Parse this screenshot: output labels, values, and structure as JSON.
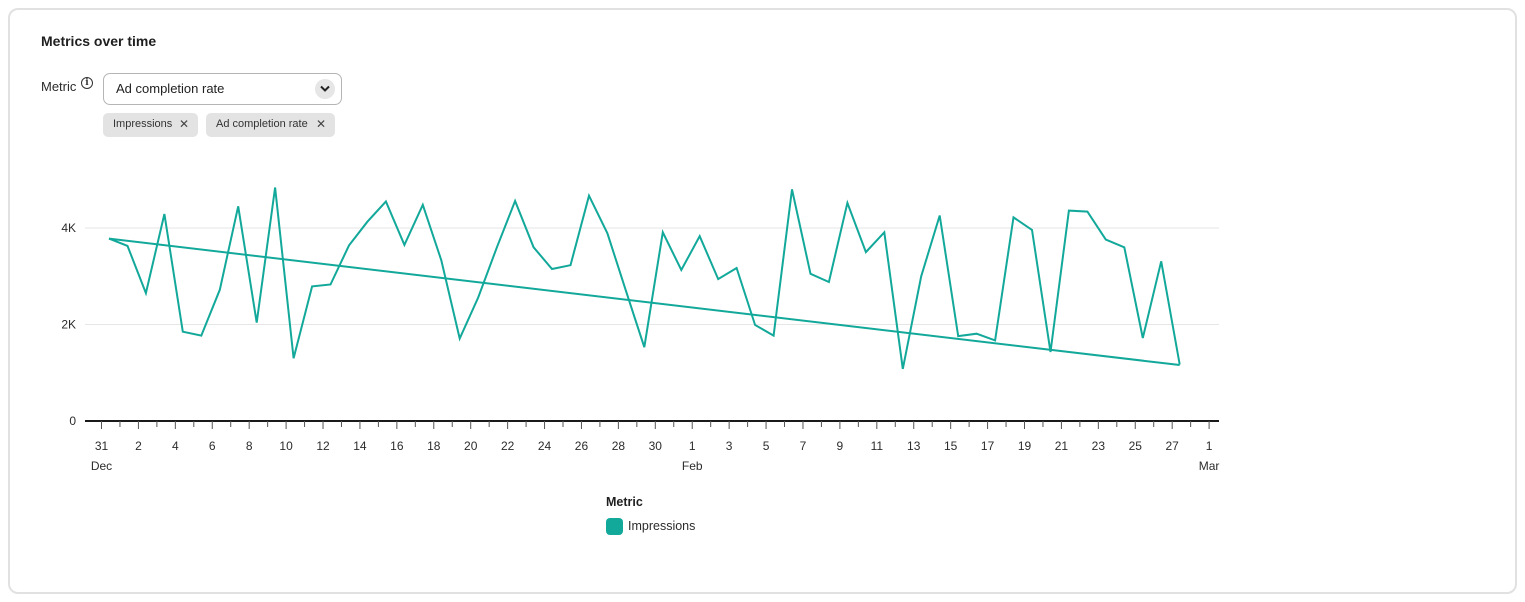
{
  "card": {
    "title": "Metrics over time"
  },
  "metric_picker": {
    "label": "Metric",
    "info_icon": "info-icon",
    "selected": "Ad completion rate",
    "chevron_icon": "chevron-down-icon"
  },
  "tags": [
    {
      "label": "Impressions",
      "remove": "✕"
    },
    {
      "label": "Ad completion rate",
      "remove": "✕"
    }
  ],
  "colors": {
    "series": "#12a89a",
    "grid": "#e6e6e6",
    "axis": "#1a1a1a"
  },
  "chart_data": {
    "type": "line",
    "y_ticks": [
      "0",
      "2K",
      "4K"
    ],
    "ylim": [
      0,
      5000
    ],
    "grid": true,
    "x_tick_labels": [
      "31",
      "2",
      "4",
      "6",
      "8",
      "10",
      "12",
      "14",
      "16",
      "18",
      "20",
      "22",
      "24",
      "26",
      "28",
      "30",
      "1",
      "3",
      "5",
      "7",
      "9",
      "11",
      "13",
      "15",
      "17",
      "19",
      "21",
      "23",
      "25",
      "27",
      "1"
    ],
    "month_labels": [
      {
        "label": "Dec",
        "at_tick": 0
      },
      {
        "label": "Feb",
        "at_tick": 16
      },
      {
        "label": "Mar",
        "at_tick": 30
      }
    ],
    "series": [
      {
        "name": "Impressions",
        "x_start": "Dec 31",
        "values": [
          3780,
          3630,
          2650,
          4290,
          1850,
          1770,
          2720,
          4450,
          2040,
          4840,
          1300,
          2790,
          2830,
          3640,
          4130,
          4550,
          3650,
          4480,
          3330,
          1710,
          2560,
          3590,
          4560,
          3600,
          3150,
          3230,
          4670,
          3890,
          2700,
          1530,
          3910,
          3130,
          3830,
          2940,
          3170,
          1990,
          1770,
          4800,
          3050,
          2880,
          4520,
          3500,
          3910,
          1080,
          3000,
          4260,
          1760,
          1810,
          1670,
          4220,
          3960,
          1430,
          4360,
          4340,
          3760,
          3600,
          1720,
          3310,
          1170
        ]
      }
    ],
    "trend": {
      "start": 3780,
      "end": 1160
    },
    "legend": {
      "title": "Metric",
      "entries": [
        "Impressions"
      ],
      "placement": "bottom-center"
    }
  }
}
